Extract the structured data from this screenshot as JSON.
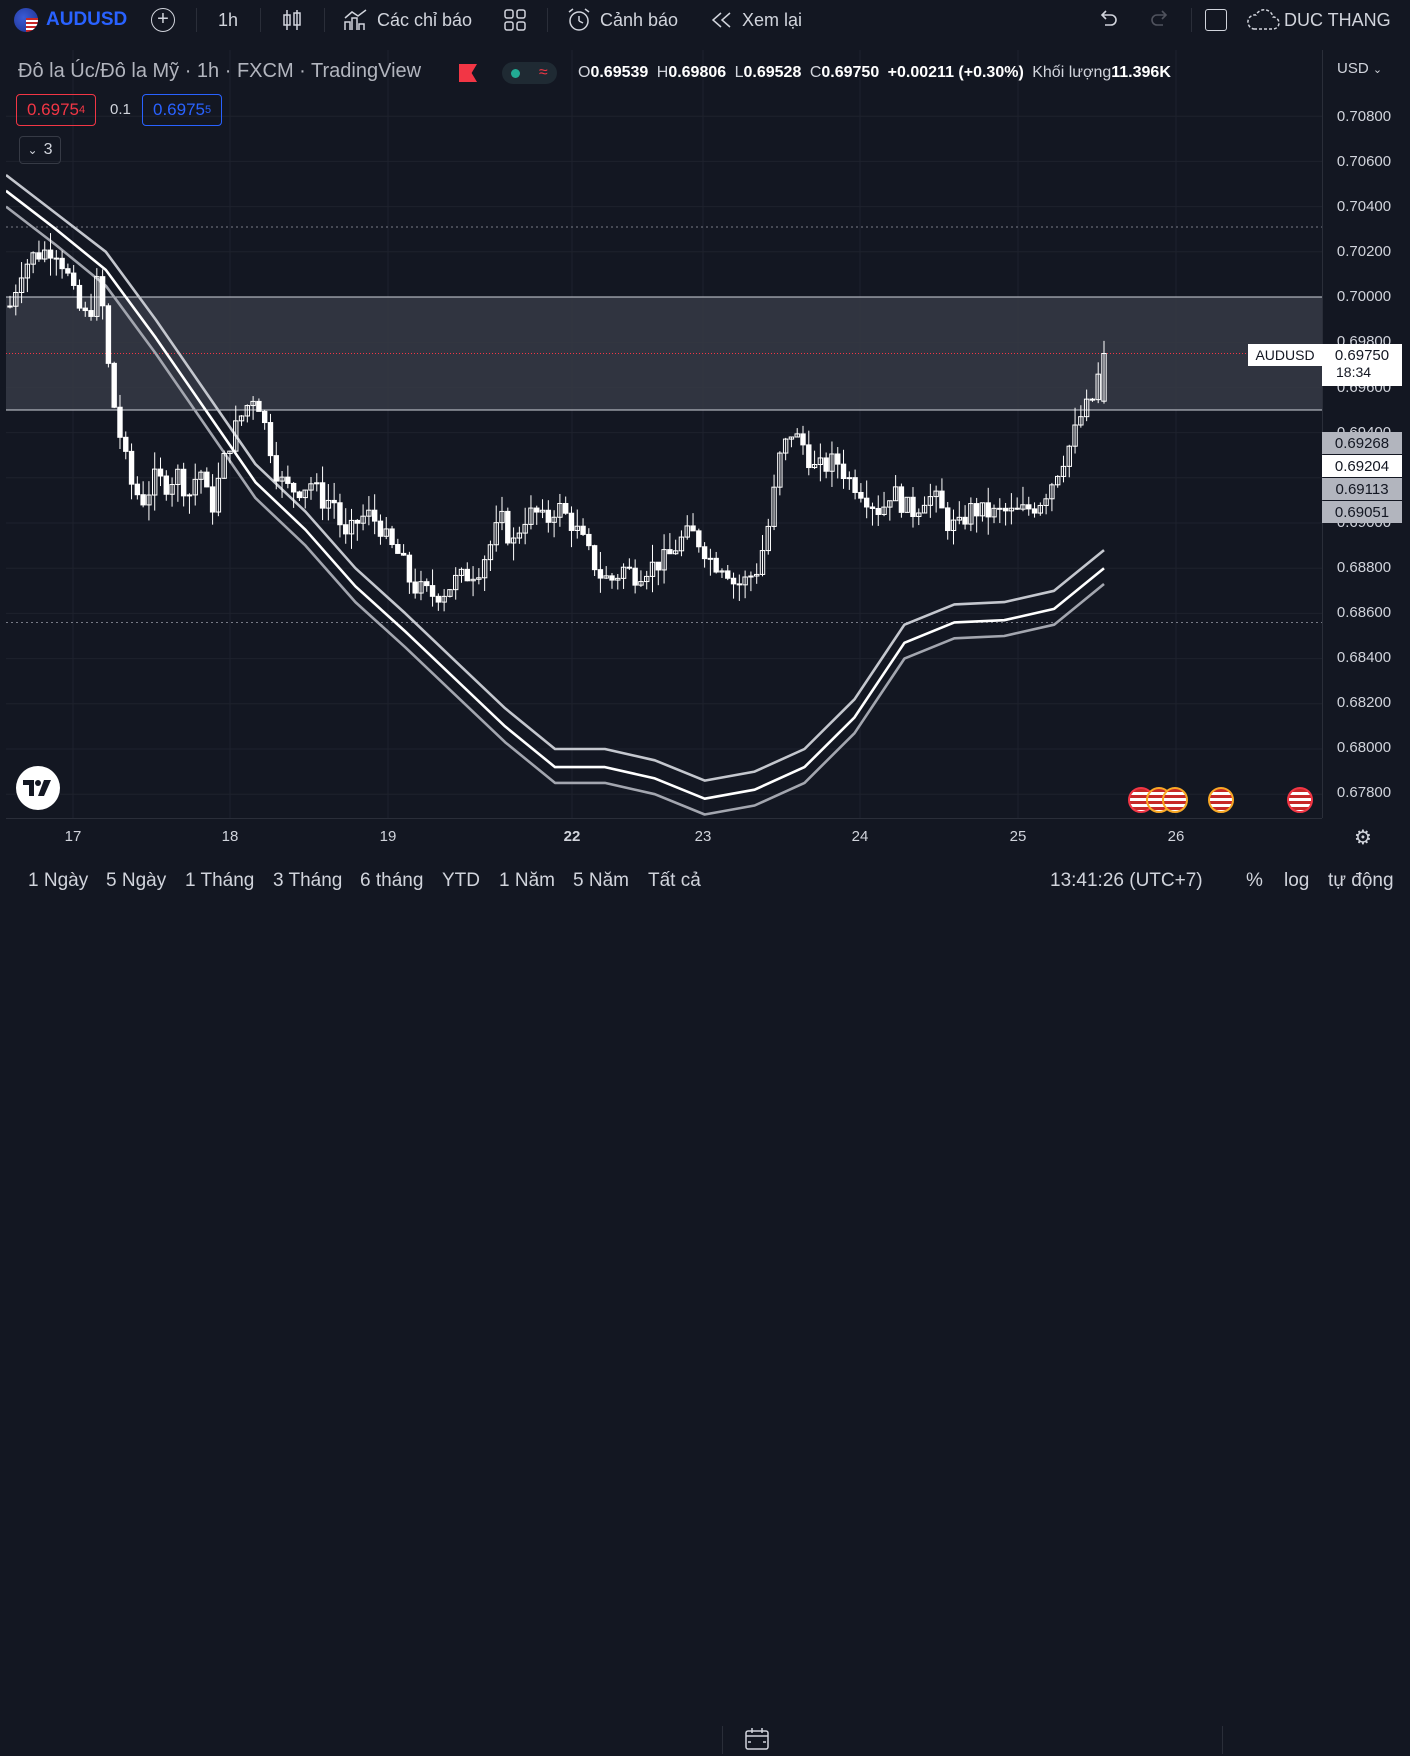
{
  "toolbar": {
    "symbol": "AUDUSD",
    "interval": "1h",
    "indicators_label": "Các chỉ báo",
    "alert_label": "Cảnh báo",
    "replay_label": "Xem lại",
    "user_name": "DUC THANG"
  },
  "legend": {
    "title": "Đô la Úc/Đô la Mỹ · 1h · FXCM · TradingView",
    "o_label": "O",
    "o_value": "0.69539",
    "h_label": "H",
    "h_value": "0.69806",
    "l_label": "L",
    "l_value": "0.69528",
    "c_label": "C",
    "c_value": "0.69750",
    "change": "+0.00211 (+0.30%)",
    "volume_label": "Khối lượng",
    "volume_value": "11.396K",
    "sell_price": "0.6975",
    "sell_sup": "4",
    "spread": "0.1",
    "buy_price": "0.6975",
    "buy_sup": "5",
    "collapse_count": "3"
  },
  "colors": {
    "background": "#131722",
    "candle": "#ffffff",
    "sell": "#f23645",
    "buy": "#2962ff",
    "zone": "#363a45"
  },
  "y_axis": {
    "currency": "USD",
    "ticks": [
      "0.70800",
      "0.70600",
      "0.70400",
      "0.70200",
      "0.70000",
      "0.69800",
      "0.69600",
      "0.69400",
      "0.69000",
      "0.68800",
      "0.68600",
      "0.68400",
      "0.68200",
      "0.68000",
      "0.67800"
    ]
  },
  "x_axis": {
    "ticks": [
      "17",
      "18",
      "19",
      "22",
      "23",
      "24",
      "25",
      "26"
    ]
  },
  "right_labels": {
    "symbol_tag": "AUDUSD",
    "last_price": "0.69750",
    "countdown": "18:34",
    "band_values": [
      "0.69268",
      "0.69204",
      "0.69113",
      "0.69051"
    ]
  },
  "bottom_bar": {
    "ranges": [
      "1 Ngày",
      "5 Ngày",
      "1 Tháng",
      "3 Tháng",
      "6 tháng",
      "YTD",
      "1 Năm",
      "5 Năm",
      "Tất cả"
    ],
    "time": "13:41:26 (UTC+7)",
    "percent": "%",
    "log": "log",
    "auto": "tự động"
  },
  "chart_data": {
    "type": "candlestick",
    "ylim": [
      0.677,
      0.7105
    ],
    "zone": [
      0.695,
      0.7
    ],
    "levels": [
      0.7031,
      0.6856,
      0.6975
    ],
    "bands": [
      {
        "name": "",
        "values": [
          0.7054,
          0.7037,
          0.702,
          0.699,
          0.6958,
          0.6926,
          0.6905,
          0.688,
          0.686,
          0.6839,
          0.6818,
          0.68,
          0.68,
          0.6795,
          0.6786,
          0.679,
          0.68,
          0.6822,
          0.6855,
          0.6864,
          0.6865,
          0.687,
          0.6888
        ]
      },
      {
        "name": "",
        "values": [
          0.7047,
          0.703,
          0.7012,
          0.6982,
          0.695,
          0.6918,
          0.6897,
          0.6872,
          0.6852,
          0.6831,
          0.681,
          0.6792,
          0.6792,
          0.6787,
          0.6778,
          0.6782,
          0.6792,
          0.6814,
          0.6847,
          0.6856,
          0.6857,
          0.6862,
          0.688
        ]
      },
      {
        "name": "",
        "values": [
          0.704,
          0.7023,
          0.7005,
          0.6975,
          0.6943,
          0.6911,
          0.689,
          0.6865,
          0.6845,
          0.6824,
          0.6803,
          0.6785,
          0.6785,
          0.678,
          0.6771,
          0.6775,
          0.6785,
          0.6807,
          0.684,
          0.6849,
          0.685,
          0.6855,
          0.6873
        ]
      }
    ],
    "path": [
      0.6996,
      0.7012,
      0.7018,
      0.702,
      0.7022,
      0.7012,
      0.6996,
      0.699,
      0.701,
      0.696,
      0.6935,
      0.6915,
      0.691,
      0.692,
      0.6917,
      0.6922,
      0.6912,
      0.6925,
      0.6905,
      0.6925,
      0.694,
      0.695,
      0.6958,
      0.694,
      0.692,
      0.6915,
      0.6915,
      0.6918,
      0.691,
      0.691,
      0.6892,
      0.69,
      0.6904,
      0.69,
      0.689,
      0.6885,
      0.6872,
      0.687,
      0.6868,
      0.687,
      0.6875,
      0.6877,
      0.688,
      0.689,
      0.6902,
      0.689,
      0.6902,
      0.6905,
      0.69,
      0.6908,
      0.6902,
      0.6895,
      0.6885,
      0.6876,
      0.6875,
      0.688,
      0.6877,
      0.688,
      0.6882,
      0.6885,
      0.6892,
      0.6896,
      0.689,
      0.6882,
      0.6882,
      0.6872,
      0.6875,
      0.688,
      0.69,
      0.693,
      0.694,
      0.6935,
      0.6924,
      0.6925,
      0.6928,
      0.692,
      0.6916,
      0.691,
      0.6905,
      0.6915,
      0.6908,
      0.6905,
      0.6912,
      0.691,
      0.69,
      0.6898,
      0.6906,
      0.6905,
      0.6904,
      0.6905,
      0.6904,
      0.6906,
      0.6908,
      0.6915,
      0.6925,
      0.6935,
      0.6948,
      0.6955,
      0.6975
    ]
  }
}
